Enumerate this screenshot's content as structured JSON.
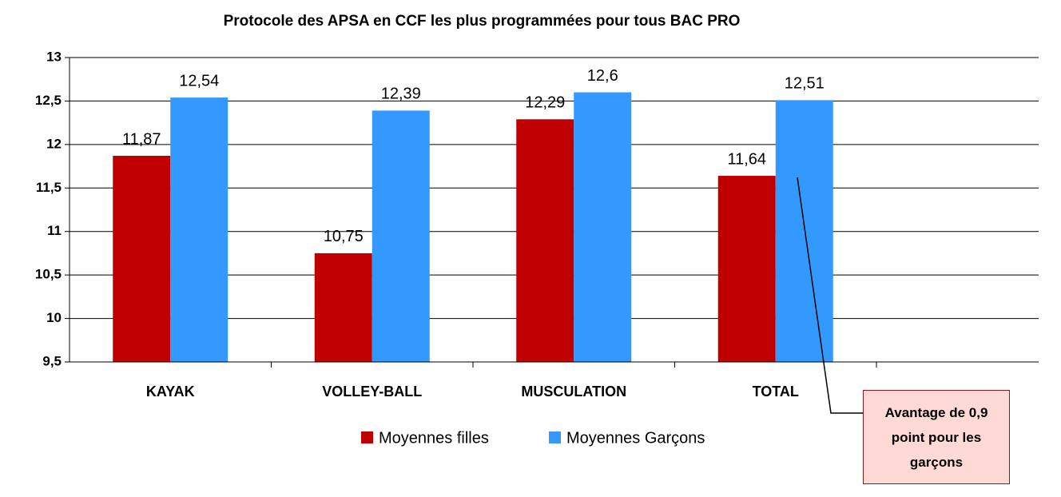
{
  "chart_data": {
    "type": "bar",
    "title": "Protocole des APSA en CCF les plus programmées pour tous BAC PRO",
    "categories": [
      "KAYAK",
      "VOLLEY-BALL",
      "MUSCULATION",
      "TOTAL",
      null
    ],
    "series": [
      {
        "name": "Moyennes filles",
        "color": "#c00000",
        "values": [
          11.87,
          10.75,
          12.29,
          11.64,
          null
        ],
        "value_labels": [
          "11,87",
          "10,75",
          "12,29",
          "11,64",
          null
        ]
      },
      {
        "name": "Moyennes Garçons",
        "color": "#3399ff",
        "values": [
          12.54,
          12.39,
          12.6,
          12.51,
          null
        ],
        "value_labels": [
          "12,54",
          "12,39",
          "12,6",
          "12,51",
          null
        ]
      }
    ],
    "ylim": [
      9.5,
      13
    ],
    "yticks": [
      {
        "value": 9.5,
        "label": "9,5"
      },
      10,
      {
        "value": 10.5,
        "label": "10,5"
      },
      11,
      {
        "value": 11.5,
        "label": "11,5"
      },
      12,
      {
        "value": 12.5,
        "label": "12,5"
      },
      13
    ],
    "grid": true,
    "legend": "bottom",
    "annotation": "Avantage de 0,9 point pour les garçons"
  }
}
